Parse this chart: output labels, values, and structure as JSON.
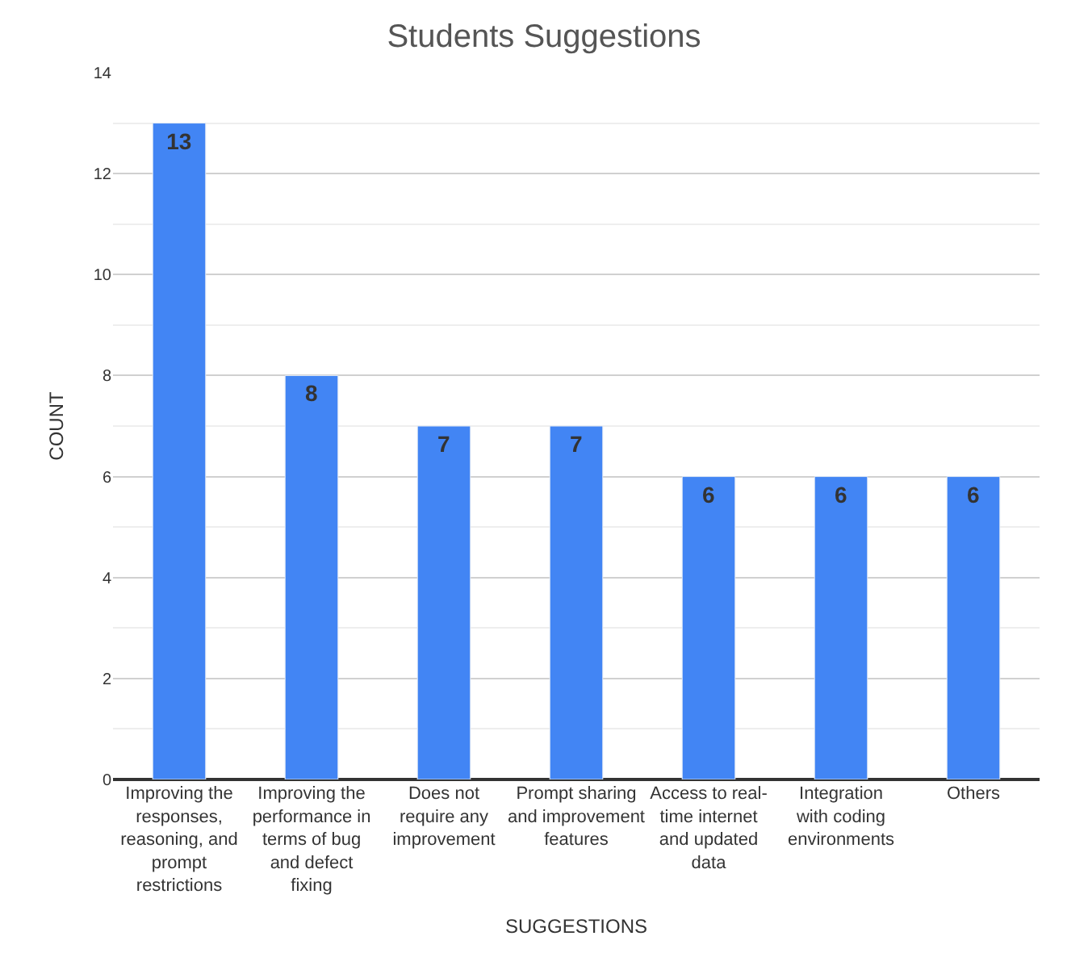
{
  "chart_data": {
    "type": "bar",
    "title": "Students Suggestions",
    "xlabel": "SUGGESTIONS",
    "ylabel": "COUNT",
    "categories": [
      "Improving the responses, reasoning, and prompt restrictions",
      "Improving the performance in terms of bug and defect fixing",
      "Does not require any improvement",
      "Prompt sharing and improvement features",
      "Access to real-time internet and updated data",
      "Integration with coding environments",
      "Others"
    ],
    "values": [
      13,
      8,
      7,
      7,
      6,
      6,
      6
    ],
    "color": "#4285f4",
    "ylim": [
      0,
      14
    ],
    "yticks": [
      0,
      2,
      4,
      6,
      8,
      10,
      12,
      14
    ],
    "grid": true,
    "data_labels": true
  }
}
